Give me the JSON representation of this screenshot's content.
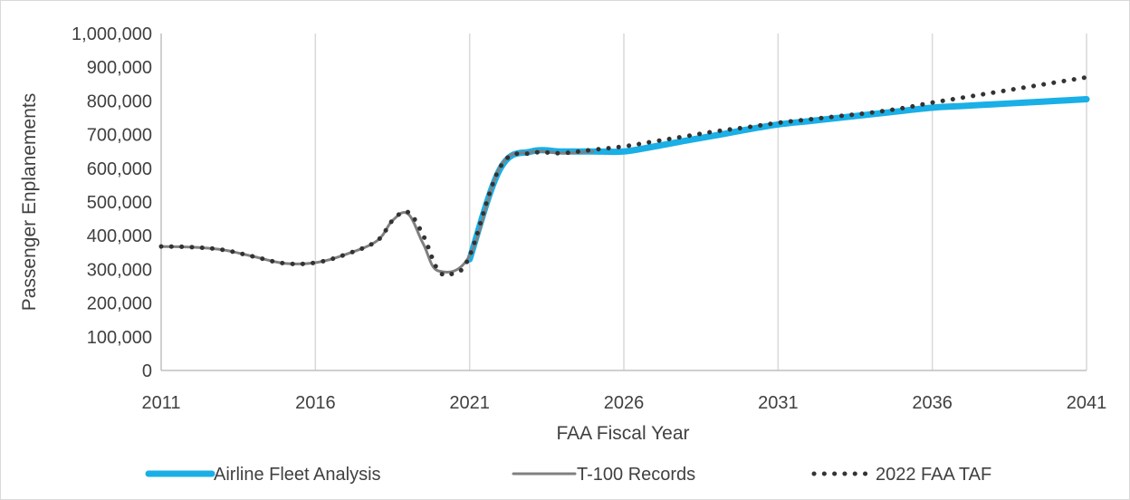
{
  "chart_data": {
    "type": "line",
    "title": "",
    "xlabel": "FAA Fiscal Year",
    "ylabel": "Passenger Enplanements",
    "xlim": [
      2011,
      2041
    ],
    "ylim": [
      0,
      1000000
    ],
    "x_ticks": [
      "2011",
      "2016",
      "2021",
      "2026",
      "2031",
      "2036",
      "2041"
    ],
    "y_ticks": [
      "0",
      "100,000",
      "200,000",
      "300,000",
      "400,000",
      "500,000",
      "600,000",
      "700,000",
      "800,000",
      "900,000",
      "1,000,000"
    ],
    "grid": "vertical",
    "legend_position": "bottom",
    "series": [
      {
        "name": "Airline Fleet Analysis",
        "color": "#1aafe6",
        "style": "solid-thick",
        "x": [
          2021,
          2022,
          2023,
          2024,
          2025,
          2026,
          2027,
          2028,
          2029,
          2030,
          2031,
          2032,
          2033,
          2034,
          2035,
          2036,
          2037,
          2038,
          2039,
          2040,
          2041
        ],
        "y": [
          330000,
          600000,
          650000,
          650000,
          650000,
          650000,
          665000,
          682000,
          698000,
          715000,
          730000,
          740000,
          750000,
          760000,
          770000,
          780000,
          785000,
          790000,
          795000,
          800000,
          805000
        ]
      },
      {
        "name": "T-100 Records",
        "color": "#808080",
        "style": "solid-thin",
        "x": [
          2011,
          2012,
          2013,
          2014,
          2015,
          2016,
          2017,
          2018,
          2018.5,
          2019,
          2019.5,
          2020,
          2021,
          2022,
          2023,
          2024,
          2025
        ],
        "y": [
          368000,
          366000,
          358000,
          338000,
          318000,
          320000,
          345000,
          385000,
          445000,
          465000,
          375000,
          295000,
          340000,
          605000,
          648000,
          645000,
          650000
        ]
      },
      {
        "name": "2022 FAA TAF",
        "color": "#333333",
        "style": "dotted",
        "x": [
          2011,
          2012,
          2013,
          2014,
          2015,
          2016,
          2017,
          2018,
          2018.5,
          2019,
          2019.5,
          2020,
          2020.5,
          2021,
          2022,
          2023,
          2024,
          2025,
          2026,
          2027,
          2028,
          2029,
          2030,
          2031,
          2032,
          2033,
          2034,
          2035,
          2036,
          2037,
          2038,
          2039,
          2040,
          2041
        ],
        "y": [
          368000,
          366000,
          358000,
          338000,
          318000,
          320000,
          345000,
          385000,
          445000,
          470000,
          400000,
          295000,
          290000,
          340000,
          605000,
          645000,
          645000,
          655000,
          665000,
          680000,
          695000,
          710000,
          722000,
          735000,
          745000,
          755000,
          765000,
          778000,
          795000,
          810000,
          825000,
          840000,
          855000,
          870000
        ]
      }
    ]
  }
}
